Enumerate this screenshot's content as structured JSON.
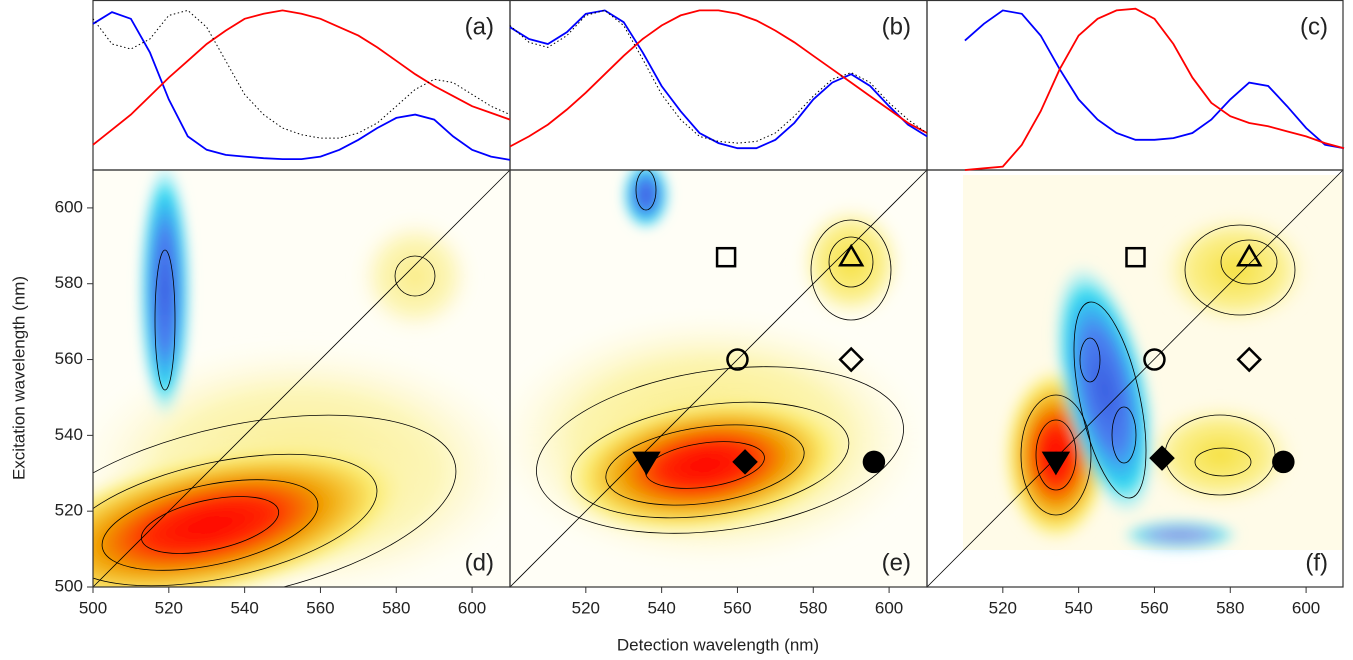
{
  "chart_data": [
    {
      "type": "line",
      "panel_label": "(a)",
      "xlim": [
        500,
        610
      ],
      "ylim": [
        0,
        1
      ],
      "x": [
        500,
        505,
        510,
        515,
        520,
        525,
        530,
        535,
        540,
        545,
        550,
        555,
        560,
        565,
        570,
        575,
        580,
        585,
        590,
        595,
        600,
        605,
        610
      ],
      "series": [
        {
          "color": "#0000ff",
          "style": "solid",
          "values": [
            0.87,
            0.94,
            0.9,
            0.7,
            0.42,
            0.2,
            0.12,
            0.09,
            0.08,
            0.07,
            0.065,
            0.065,
            0.08,
            0.12,
            0.18,
            0.25,
            0.31,
            0.33,
            0.3,
            0.2,
            0.12,
            0.08,
            0.06
          ]
        },
        {
          "color": "#ff0000",
          "style": "solid",
          "values": [
            0.15,
            0.24,
            0.33,
            0.44,
            0.55,
            0.65,
            0.75,
            0.83,
            0.9,
            0.93,
            0.95,
            0.93,
            0.9,
            0.85,
            0.8,
            0.73,
            0.65,
            0.57,
            0.5,
            0.44,
            0.38,
            0.34,
            0.3
          ]
        },
        {
          "color": "#000000",
          "style": "dotted",
          "values": [
            0.9,
            0.75,
            0.72,
            0.78,
            0.92,
            0.95,
            0.85,
            0.65,
            0.45,
            0.33,
            0.25,
            0.21,
            0.19,
            0.19,
            0.22,
            0.28,
            0.38,
            0.48,
            0.54,
            0.52,
            0.45,
            0.38,
            0.33
          ]
        }
      ]
    },
    {
      "type": "line",
      "panel_label": "(b)",
      "xlim": [
        500,
        610
      ],
      "ylim": [
        0,
        1
      ],
      "x": [
        500,
        505,
        510,
        515,
        520,
        525,
        530,
        535,
        540,
        545,
        550,
        555,
        560,
        565,
        570,
        575,
        580,
        585,
        590,
        595,
        600,
        605,
        610
      ],
      "series": [
        {
          "color": "#0000ff",
          "style": "solid",
          "values": [
            0.85,
            0.78,
            0.75,
            0.82,
            0.93,
            0.95,
            0.88,
            0.7,
            0.5,
            0.35,
            0.22,
            0.16,
            0.13,
            0.13,
            0.18,
            0.28,
            0.42,
            0.52,
            0.57,
            0.5,
            0.38,
            0.27,
            0.2
          ]
        },
        {
          "color": "#ff0000",
          "style": "solid",
          "values": [
            0.14,
            0.2,
            0.27,
            0.36,
            0.46,
            0.57,
            0.68,
            0.78,
            0.86,
            0.92,
            0.95,
            0.95,
            0.93,
            0.89,
            0.83,
            0.76,
            0.68,
            0.6,
            0.52,
            0.44,
            0.36,
            0.28,
            0.22
          ]
        },
        {
          "color": "#000000",
          "style": "dotted",
          "values": [
            0.86,
            0.76,
            0.73,
            0.8,
            0.92,
            0.95,
            0.86,
            0.66,
            0.45,
            0.3,
            0.2,
            0.17,
            0.16,
            0.17,
            0.22,
            0.32,
            0.44,
            0.54,
            0.58,
            0.52,
            0.4,
            0.3,
            0.22
          ]
        }
      ]
    },
    {
      "type": "line",
      "panel_label": "(c)",
      "xlim": [
        500,
        610
      ],
      "ylim": [
        0,
        1
      ],
      "x": [
        510,
        515,
        520,
        525,
        530,
        535,
        540,
        545,
        550,
        555,
        560,
        565,
        570,
        575,
        580,
        585,
        590,
        595,
        600,
        605,
        610
      ],
      "series": [
        {
          "color": "#0000ff",
          "style": "solid",
          "values": [
            0.77,
            0.87,
            0.95,
            0.93,
            0.8,
            0.6,
            0.42,
            0.3,
            0.22,
            0.18,
            0.18,
            0.19,
            0.22,
            0.3,
            0.42,
            0.52,
            0.5,
            0.38,
            0.25,
            0.15,
            0.13
          ]
        },
        {
          "color": "#ff0000",
          "style": "solid",
          "values": [
            0,
            0.01,
            0.02,
            0.15,
            0.35,
            0.6,
            0.8,
            0.9,
            0.95,
            0.96,
            0.9,
            0.75,
            0.55,
            0.4,
            0.32,
            0.28,
            0.26,
            0.23,
            0.2,
            0.16,
            0.13
          ]
        }
      ]
    },
    {
      "type": "map",
      "panel_label": "(d)",
      "xlim": [
        500,
        610
      ],
      "ylim": [
        500,
        610
      ],
      "xticks": [
        500,
        520,
        540,
        560,
        580,
        600
      ],
      "yticks": [
        500,
        520,
        540,
        560,
        580,
        600
      ],
      "ylabel": "Excitation wavelength (nm)",
      "points": []
    },
    {
      "type": "map",
      "panel_label": "(e)",
      "xlim": [
        500,
        610
      ],
      "ylim": [
        500,
        610
      ],
      "xticks": [
        520,
        540,
        560,
        580,
        600
      ],
      "xlabel": "Detection wavelength (nm)",
      "points": [
        {
          "x": 557,
          "y": 587,
          "marker": "square",
          "filled": false
        },
        {
          "x": 560,
          "y": 560,
          "marker": "circle",
          "filled": false
        },
        {
          "x": 590,
          "y": 587,
          "marker": "triangle-up",
          "filled": false
        },
        {
          "x": 590,
          "y": 560,
          "marker": "diamond",
          "filled": false
        },
        {
          "x": 536,
          "y": 533,
          "marker": "triangle-down",
          "filled": true
        },
        {
          "x": 562,
          "y": 533,
          "marker": "diamond",
          "filled": true
        },
        {
          "x": 596,
          "y": 533,
          "marker": "circle",
          "filled": true
        }
      ]
    },
    {
      "type": "map",
      "panel_label": "(f)",
      "xlim": [
        500,
        610
      ],
      "ylim": [
        500,
        610
      ],
      "xticks": [
        520,
        540,
        560,
        580,
        600
      ],
      "points": [
        {
          "x": 555,
          "y": 587,
          "marker": "square",
          "filled": false
        },
        {
          "x": 560,
          "y": 560,
          "marker": "circle",
          "filled": false
        },
        {
          "x": 585,
          "y": 587,
          "marker": "triangle-up",
          "filled": false
        },
        {
          "x": 585,
          "y": 560,
          "marker": "diamond",
          "filled": false
        },
        {
          "x": 534,
          "y": 533,
          "marker": "triangle-down",
          "filled": true
        },
        {
          "x": 562,
          "y": 534,
          "marker": "diamond",
          "filled": true
        },
        {
          "x": 594,
          "y": 533,
          "marker": "circle",
          "filled": true
        }
      ]
    }
  ]
}
